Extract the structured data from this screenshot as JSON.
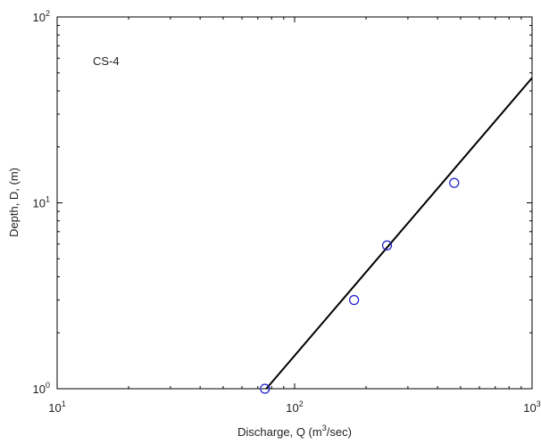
{
  "chart_data": {
    "type": "scatter",
    "annotation": "CS-4",
    "xlabel": {
      "prefix": "Discharge, Q (m",
      "sup": "3",
      "suffix": "/sec)"
    },
    "ylabel": "Depth, D, (m)",
    "xscale": "log",
    "yscale": "log",
    "xlim": [
      10,
      1000
    ],
    "ylim": [
      1,
      100
    ],
    "xticks": [
      {
        "base": "10",
        "exp": "1",
        "value": 10
      },
      {
        "base": "10",
        "exp": "2",
        "value": 100
      },
      {
        "base": "10",
        "exp": "3",
        "value": 1000
      }
    ],
    "yticks": [
      {
        "base": "10",
        "exp": "0",
        "value": 1
      },
      {
        "base": "10",
        "exp": "1",
        "value": 10
      },
      {
        "base": "10",
        "exp": "2",
        "value": 100
      }
    ],
    "grid": false,
    "series": [
      {
        "type": "scatter",
        "marker": "open-circle",
        "color": "#1a1acc",
        "points": [
          {
            "x": 75,
            "y": 1.0
          },
          {
            "x": 178,
            "y": 3.0
          },
          {
            "x": 245,
            "y": 5.9
          },
          {
            "x": 470,
            "y": 12.8
          }
        ]
      },
      {
        "type": "line",
        "color": "#000000",
        "points": [
          {
            "x": 76,
            "y": 1.0
          },
          {
            "x": 1000,
            "y": 47
          }
        ]
      }
    ]
  }
}
